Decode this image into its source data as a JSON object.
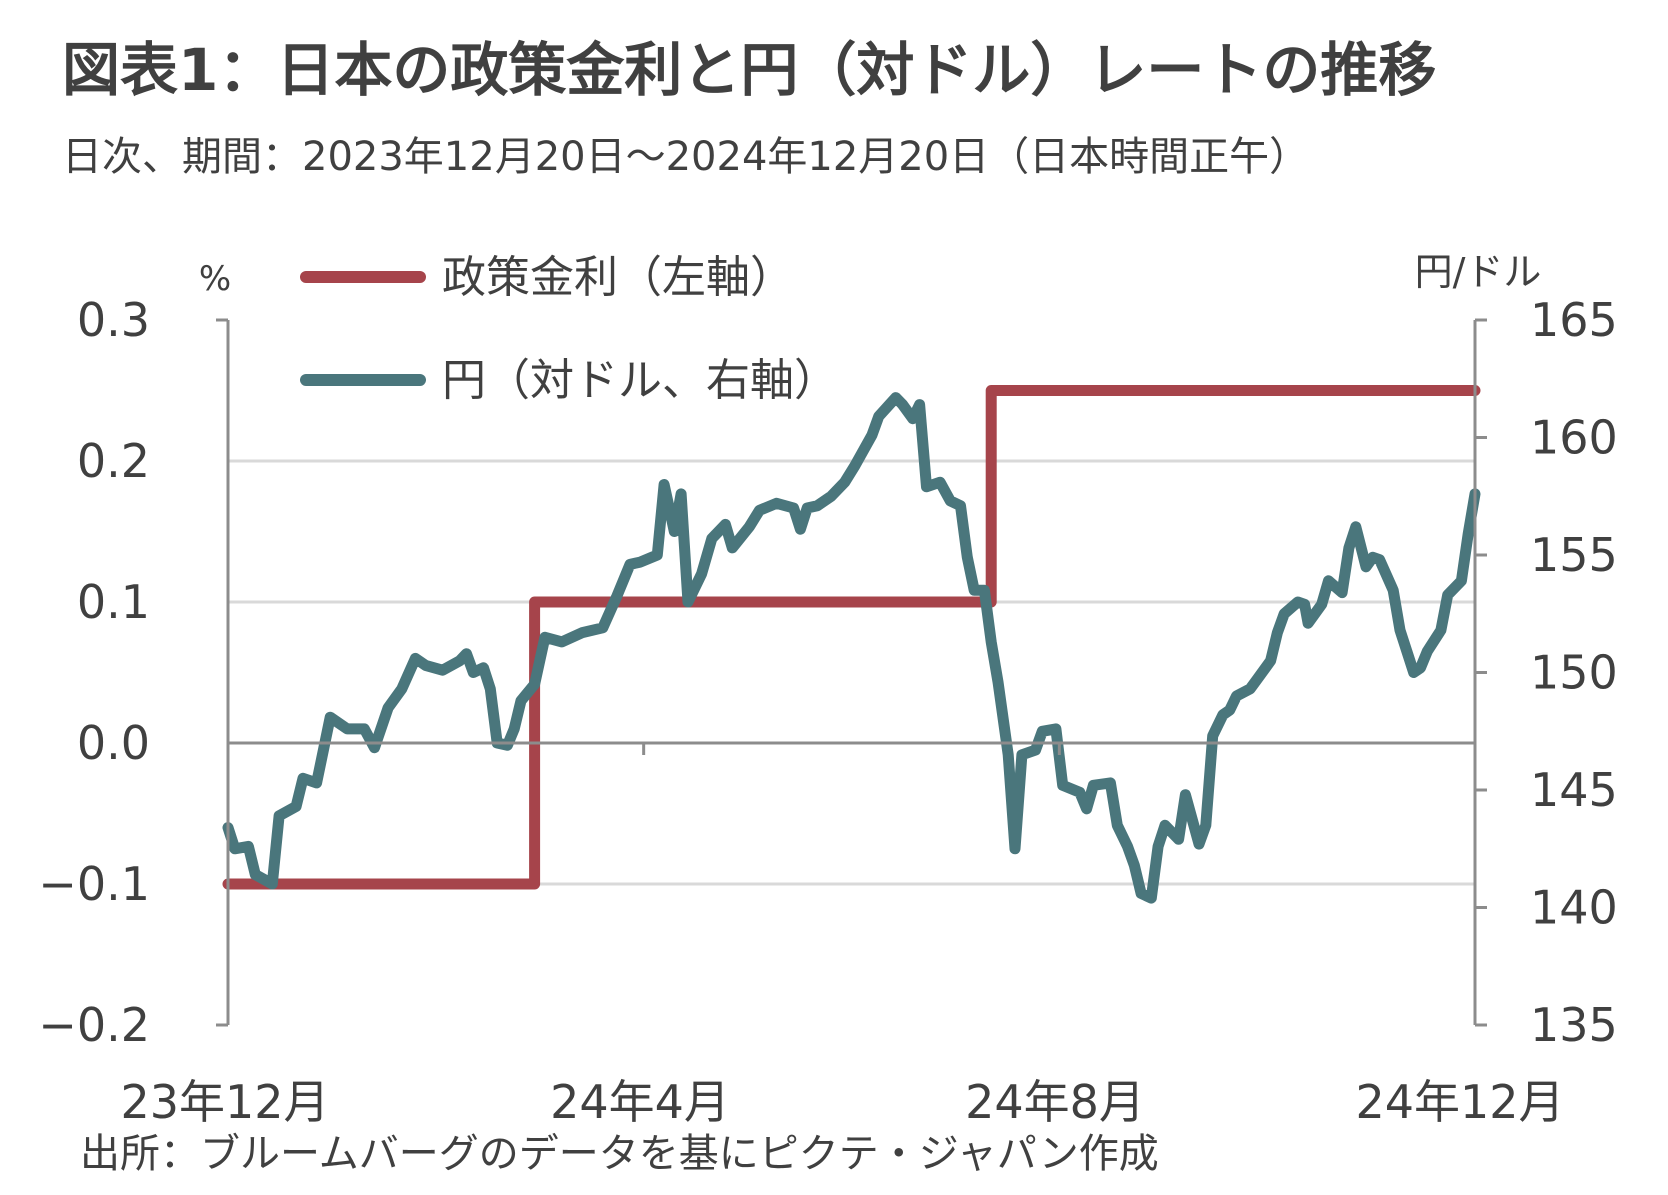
{
  "chart_data": {
    "type": "line",
    "title": "図表1：日本の政策金利と円（対ドル）レートの推移",
    "subtitle": "日次、期間：2023年12月20日～2024年12月20日（日本時間正午）",
    "source": "出所：ブルームバーグのデータを基にピクテ・ジャパン作成",
    "y_left": {
      "unit": "%",
      "range": [
        -0.2,
        0.3
      ],
      "ticks": [
        "0.3",
        "0.2",
        "0.1",
        "0.0",
        "−0.1",
        "−0.2"
      ]
    },
    "y_right": {
      "unit": "円/ドル",
      "range": [
        135,
        165
      ],
      "ticks": [
        "165",
        "160",
        "155",
        "150",
        "145",
        "140",
        "135"
      ]
    },
    "x": {
      "range": [
        "2023-12-20",
        "2024-12-20"
      ],
      "tick_labels": [
        "23年12月",
        "24年4月",
        "24年8月",
        "24年12月"
      ]
    },
    "grid": true,
    "legend": {
      "position": "top-left",
      "items": [
        "政策金利（左軸）",
        "円（対ドル、右軸）"
      ]
    },
    "series": [
      {
        "name": "政策金利（左軸）",
        "axis": "left",
        "color": "#a6444b",
        "step": true,
        "points": [
          [
            "2023-12-20",
            -0.1
          ],
          [
            "2024-03-19",
            -0.1
          ],
          [
            "2024-03-19",
            0.1
          ],
          [
            "2024-07-31",
            0.1
          ],
          [
            "2024-07-31",
            0.25
          ],
          [
            "2024-12-20",
            0.25
          ]
        ]
      },
      {
        "name": "円（対ドル、右軸）",
        "axis": "right",
        "color": "#4a767c",
        "points": [
          [
            "2023-12-20",
            143.4
          ],
          [
            "2023-12-22",
            142.5
          ],
          [
            "2023-12-26",
            142.6
          ],
          [
            "2023-12-28",
            141.4
          ],
          [
            "2024-01-02",
            141.0
          ],
          [
            "2024-01-04",
            143.9
          ],
          [
            "2024-01-09",
            144.3
          ],
          [
            "2024-01-11",
            145.5
          ],
          [
            "2024-01-15",
            145.3
          ],
          [
            "2024-01-19",
            148.1
          ],
          [
            "2024-01-24",
            147.6
          ],
          [
            "2024-01-29",
            147.6
          ],
          [
            "2024-02-01",
            146.8
          ],
          [
            "2024-02-05",
            148.5
          ],
          [
            "2024-02-09",
            149.3
          ],
          [
            "2024-02-13",
            150.6
          ],
          [
            "2024-02-16",
            150.3
          ],
          [
            "2024-02-21",
            150.1
          ],
          [
            "2024-02-26",
            150.5
          ],
          [
            "2024-02-28",
            150.8
          ],
          [
            "2024-03-01",
            150.0
          ],
          [
            "2024-03-04",
            150.2
          ],
          [
            "2024-03-06",
            149.3
          ],
          [
            "2024-03-08",
            147.0
          ],
          [
            "2024-03-11",
            146.9
          ],
          [
            "2024-03-13",
            147.6
          ],
          [
            "2024-03-15",
            148.8
          ],
          [
            "2024-03-19",
            149.5
          ],
          [
            "2024-03-22",
            151.5
          ],
          [
            "2024-03-27",
            151.3
          ],
          [
            "2024-04-02",
            151.7
          ],
          [
            "2024-04-08",
            151.9
          ],
          [
            "2024-04-12",
            153.2
          ],
          [
            "2024-04-16",
            154.6
          ],
          [
            "2024-04-19",
            154.7
          ],
          [
            "2024-04-24",
            155.0
          ],
          [
            "2024-04-26",
            158.0
          ],
          [
            "2024-04-29",
            156.0
          ],
          [
            "2024-05-01",
            157.6
          ],
          [
            "2024-05-03",
            153.0
          ],
          [
            "2024-05-07",
            154.2
          ],
          [
            "2024-05-10",
            155.7
          ],
          [
            "2024-05-14",
            156.3
          ],
          [
            "2024-05-16",
            155.3
          ],
          [
            "2024-05-21",
            156.2
          ],
          [
            "2024-05-24",
            156.9
          ],
          [
            "2024-05-29",
            157.2
          ],
          [
            "2024-06-03",
            157.0
          ],
          [
            "2024-06-05",
            156.1
          ],
          [
            "2024-06-07",
            157.0
          ],
          [
            "2024-06-10",
            157.1
          ],
          [
            "2024-06-14",
            157.5
          ],
          [
            "2024-06-18",
            158.1
          ],
          [
            "2024-06-21",
            158.8
          ],
          [
            "2024-06-26",
            160.1
          ],
          [
            "2024-06-28",
            160.9
          ],
          [
            "2024-07-03",
            161.7
          ],
          [
            "2024-07-05",
            161.4
          ],
          [
            "2024-07-08",
            160.8
          ],
          [
            "2024-07-10",
            161.4
          ],
          [
            "2024-07-12",
            157.9
          ],
          [
            "2024-07-16",
            158.1
          ],
          [
            "2024-07-19",
            157.3
          ],
          [
            "2024-07-22",
            157.1
          ],
          [
            "2024-07-24",
            154.9
          ],
          [
            "2024-07-26",
            153.5
          ],
          [
            "2024-07-29",
            153.5
          ],
          [
            "2024-07-31",
            151.3
          ],
          [
            "2024-08-02",
            149.6
          ],
          [
            "2024-08-05",
            146.5
          ],
          [
            "2024-08-07",
            142.5
          ],
          [
            "2024-08-09",
            146.5
          ],
          [
            "2024-08-13",
            146.7
          ],
          [
            "2024-08-15",
            147.5
          ],
          [
            "2024-08-19",
            147.6
          ],
          [
            "2024-08-21",
            145.2
          ],
          [
            "2024-08-26",
            144.9
          ],
          [
            "2024-08-28",
            144.2
          ],
          [
            "2024-08-30",
            145.2
          ],
          [
            "2024-09-04",
            145.3
          ],
          [
            "2024-09-06",
            143.5
          ],
          [
            "2024-09-09",
            142.6
          ],
          [
            "2024-09-11",
            141.8
          ],
          [
            "2024-09-13",
            140.6
          ],
          [
            "2024-09-16",
            140.4
          ],
          [
            "2024-09-18",
            142.6
          ],
          [
            "2024-09-20",
            143.5
          ],
          [
            "2024-09-24",
            142.9
          ],
          [
            "2024-09-26",
            144.8
          ],
          [
            "2024-09-30",
            142.7
          ],
          [
            "2024-10-02",
            143.5
          ],
          [
            "2024-10-04",
            147.3
          ],
          [
            "2024-10-07",
            148.2
          ],
          [
            "2024-10-09",
            148.4
          ],
          [
            "2024-10-11",
            149.0
          ],
          [
            "2024-10-15",
            149.3
          ],
          [
            "2024-10-17",
            149.7
          ],
          [
            "2024-10-21",
            150.5
          ],
          [
            "2024-10-23",
            151.7
          ],
          [
            "2024-10-25",
            152.5
          ],
          [
            "2024-10-29",
            153.0
          ],
          [
            "2024-10-31",
            152.9
          ],
          [
            "2024-11-01",
            152.1
          ],
          [
            "2024-11-05",
            152.9
          ],
          [
            "2024-11-07",
            153.9
          ],
          [
            "2024-11-11",
            153.4
          ],
          [
            "2024-11-13",
            155.3
          ],
          [
            "2024-11-15",
            156.2
          ],
          [
            "2024-11-18",
            154.5
          ],
          [
            "2024-11-20",
            154.9
          ],
          [
            "2024-11-22",
            154.8
          ],
          [
            "2024-11-26",
            153.5
          ],
          [
            "2024-11-28",
            151.8
          ],
          [
            "2024-12-02",
            150.0
          ],
          [
            "2024-12-04",
            150.2
          ],
          [
            "2024-12-06",
            150.9
          ],
          [
            "2024-12-10",
            151.8
          ],
          [
            "2024-12-12",
            153.3
          ],
          [
            "2024-12-16",
            153.9
          ],
          [
            "2024-12-18",
            155.9
          ],
          [
            "2024-12-20",
            157.6
          ]
        ]
      }
    ]
  }
}
